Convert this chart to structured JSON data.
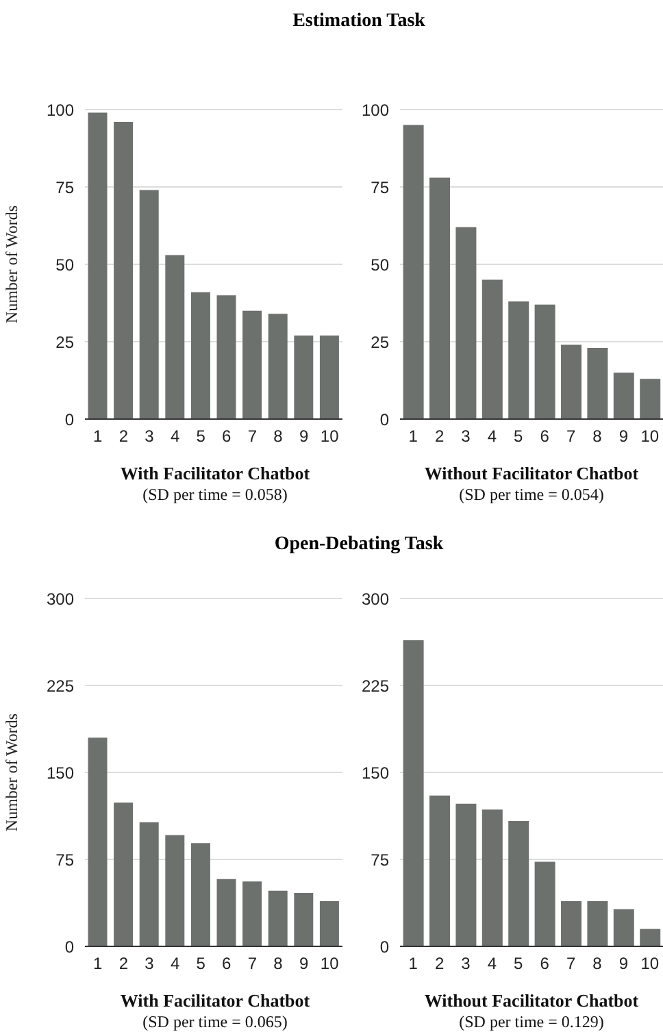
{
  "chart_data": [
    {
      "type": "bar",
      "title": "Estimation Task",
      "xlabel": "With Facilitator Chatbot",
      "ylabel": "Number of Words",
      "annotations": [
        "(SD per time = 0.058)"
      ],
      "categories": [
        "1",
        "2",
        "3",
        "4",
        "5",
        "6",
        "7",
        "8",
        "9",
        "10"
      ],
      "values": [
        99,
        96,
        74,
        53,
        41,
        40,
        35,
        34,
        27,
        27
      ],
      "color": "#6c716e",
      "ylim": [
        0,
        100
      ],
      "yticks": [
        0,
        25,
        50,
        75,
        100
      ],
      "grid": "y"
    },
    {
      "type": "bar",
      "xlabel": "Without Facilitator Chatbot",
      "annotations": [
        "(SD per time = 0.054)"
      ],
      "categories": [
        "1",
        "2",
        "3",
        "4",
        "5",
        "6",
        "7",
        "8",
        "9",
        "10"
      ],
      "values": [
        95,
        78,
        62,
        45,
        38,
        37,
        24,
        23,
        15,
        13
      ],
      "color": "#6c716e",
      "ylim": [
        0,
        100
      ],
      "yticks": [
        0,
        25,
        50,
        75,
        100
      ],
      "grid": "y"
    },
    {
      "type": "bar",
      "title": "Open-Debating Task",
      "xlabel": "With Facilitator Chatbot",
      "ylabel": "Number of Words",
      "annotations": [
        "(SD per time = 0.065)"
      ],
      "categories": [
        "1",
        "2",
        "3",
        "4",
        "5",
        "6",
        "7",
        "8",
        "9",
        "10"
      ],
      "values": [
        180,
        124,
        107,
        96,
        89,
        58,
        56,
        48,
        46,
        39
      ],
      "color": "#6c716e",
      "ylim": [
        0,
        300
      ],
      "yticks": [
        0,
        75,
        150,
        225,
        300
      ],
      "grid": "y"
    },
    {
      "type": "bar",
      "xlabel": "Without Facilitator Chatbot",
      "annotations": [
        "(SD per time = 0.129)"
      ],
      "categories": [
        "1",
        "2",
        "3",
        "4",
        "5",
        "6",
        "7",
        "8",
        "9",
        "10"
      ],
      "values": [
        264,
        130,
        123,
        118,
        108,
        73,
        39,
        39,
        32,
        15
      ],
      "color": "#6c716e",
      "ylim": [
        0,
        300
      ],
      "yticks": [
        0,
        75,
        150,
        225,
        300
      ],
      "grid": "y"
    }
  ]
}
